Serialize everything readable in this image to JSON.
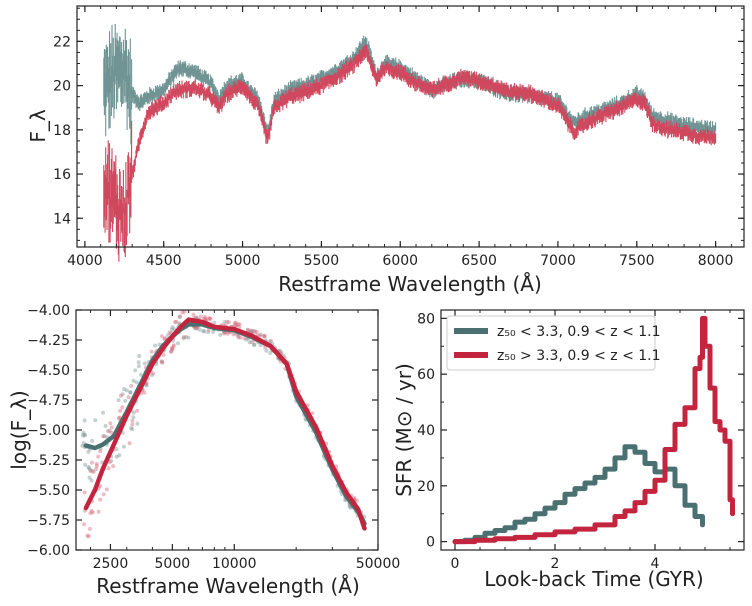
{
  "colors": {
    "teal": "#4a7072",
    "red": "#c4253e",
    "teal_light": "#6f9493",
    "red_light": "#d0485e"
  },
  "chart_data": [
    {
      "type": "line",
      "xlabel": "Restframe Wavelength (Å)",
      "ylabel": "F_λ",
      "xlim": [
        3950,
        8180
      ],
      "ylim": [
        12.7,
        23.6
      ],
      "xticks": [
        4000,
        4500,
        5000,
        5500,
        6000,
        6500,
        7000,
        7500,
        8000
      ],
      "yticks": [
        14,
        16,
        18,
        20,
        22
      ],
      "error_bars": true,
      "series": [
        {
          "color": "teal",
          "x": [
            4120,
            4180,
            4250,
            4300,
            4350,
            4400,
            4500,
            4560,
            4600,
            4700,
            4800,
            4850,
            4900,
            5000,
            5050,
            5100,
            5160,
            5200,
            5300,
            5400,
            5500,
            5600,
            5700,
            5780,
            5800,
            5850,
            5900,
            6000,
            6100,
            6200,
            6300,
            6400,
            6500,
            6600,
            6700,
            6800,
            6900,
            7000,
            7050,
            7100,
            7200,
            7300,
            7400,
            7500,
            7550,
            7600,
            7700,
            7800,
            7900,
            8000
          ],
          "y": [
            19.8,
            20.4,
            20.8,
            19.6,
            19.2,
            19.5,
            19.8,
            20.5,
            20.8,
            20.6,
            20.1,
            19.4,
            20.0,
            20.2,
            19.7,
            19.4,
            17.8,
            19.3,
            19.8,
            20.0,
            20.3,
            20.7,
            21.2,
            22.0,
            21.6,
            20.4,
            21.0,
            20.8,
            20.3,
            19.8,
            20.1,
            20.3,
            20.2,
            19.9,
            19.6,
            19.6,
            19.4,
            19.3,
            18.8,
            18.3,
            18.7,
            18.9,
            19.2,
            19.6,
            19.4,
            18.6,
            18.4,
            18.2,
            18.1,
            18.0
          ]
        },
        {
          "color": "red",
          "x": [
            4120,
            4150,
            4200,
            4250,
            4300,
            4350,
            4400,
            4500,
            4560,
            4600,
            4700,
            4800,
            4850,
            4900,
            5000,
            5050,
            5100,
            5160,
            5200,
            5300,
            5400,
            5500,
            5600,
            5700,
            5780,
            5800,
            5850,
            5900,
            6000,
            6100,
            6200,
            6300,
            6400,
            6500,
            6600,
            6700,
            6800,
            6900,
            7000,
            7050,
            7100,
            7200,
            7300,
            7400,
            7500,
            7550,
            7600,
            7700,
            7800,
            7900,
            8000
          ],
          "y": [
            16.0,
            15.2,
            14.6,
            14.2,
            16.0,
            17.6,
            18.8,
            19.2,
            19.7,
            19.8,
            19.9,
            19.5,
            19.0,
            19.6,
            20.0,
            19.5,
            19.0,
            17.5,
            19.0,
            19.5,
            19.7,
            20.0,
            20.4,
            20.9,
            21.6,
            21.2,
            20.3,
            20.8,
            20.6,
            20.1,
            19.8,
            20.1,
            20.4,
            20.2,
            20.0,
            19.7,
            19.7,
            19.4,
            19.1,
            18.5,
            17.9,
            18.4,
            18.7,
            19.0,
            19.4,
            19.2,
            18.3,
            18.0,
            17.9,
            17.7,
            17.7
          ]
        }
      ]
    },
    {
      "type": "line",
      "xlabel": "Restframe Wavelength (Å)",
      "ylabel": "log(F_λ)",
      "xscale": "log",
      "xlim": [
        1700,
        50000
      ],
      "ylim": [
        -6.0,
        -4.0
      ],
      "xticks": [
        2500,
        5000,
        10000,
        50000
      ],
      "yticks": [
        -6.0,
        -5.75,
        -5.5,
        -5.25,
        -5.0,
        -4.75,
        -4.5,
        -4.25,
        -4.0
      ],
      "scatter_points": true,
      "series": [
        {
          "color": "teal",
          "x": [
            1900,
            2100,
            2300,
            2600,
            3000,
            3500,
            4000,
            4500,
            5000,
            5500,
            6000,
            7000,
            8000,
            10000,
            12000,
            15000,
            18000,
            20000,
            25000,
            30000,
            35000,
            40000,
            43000
          ],
          "y": [
            -5.13,
            -5.15,
            -5.12,
            -5.05,
            -4.85,
            -4.62,
            -4.42,
            -4.3,
            -4.22,
            -4.16,
            -4.12,
            -4.12,
            -4.15,
            -4.17,
            -4.22,
            -4.3,
            -4.45,
            -4.72,
            -5.02,
            -5.33,
            -5.55,
            -5.68,
            -5.78
          ]
        },
        {
          "color": "red",
          "x": [
            1900,
            2100,
            2300,
            2600,
            3000,
            3500,
            4000,
            4500,
            5000,
            5500,
            6000,
            7000,
            8000,
            10000,
            12000,
            15000,
            18000,
            20000,
            25000,
            30000,
            35000,
            40000,
            43000
          ],
          "y": [
            -5.65,
            -5.5,
            -5.32,
            -5.12,
            -4.88,
            -4.65,
            -4.45,
            -4.32,
            -4.22,
            -4.14,
            -4.08,
            -4.1,
            -4.14,
            -4.16,
            -4.21,
            -4.3,
            -4.45,
            -4.68,
            -4.98,
            -5.3,
            -5.52,
            -5.66,
            -5.82
          ]
        }
      ]
    },
    {
      "type": "line",
      "xlabel": "Look-back Time (GYR)",
      "ylabel": "SFR (M⊙ / yr)",
      "xlim": [
        -0.28,
        5.78
      ],
      "ylim": [
        -3,
        83
      ],
      "xticks": [
        0,
        2,
        4
      ],
      "yticks": [
        0,
        20,
        40,
        60,
        80
      ],
      "legend": "top-left",
      "series": [
        {
          "name": "z₅₀ < 3.3, 0.9 < z < 1.1",
          "color": "teal",
          "x": [
            0,
            0.2,
            0.4,
            0.6,
            0.8,
            1.0,
            1.2,
            1.4,
            1.6,
            1.8,
            2.0,
            2.2,
            2.4,
            2.6,
            2.8,
            3.0,
            3.2,
            3.4,
            3.6,
            3.8,
            4.0,
            4.2,
            4.4,
            4.6,
            4.8,
            4.95
          ],
          "y": [
            0,
            0.5,
            1.5,
            3,
            4,
            5,
            7,
            8,
            10,
            12,
            14,
            17,
            19,
            21,
            23,
            26,
            30,
            34,
            32,
            28,
            25,
            26,
            20,
            13,
            9,
            6
          ]
        },
        {
          "name": "z₅₀ > 3.3, 0.9 < z < 1.1",
          "color": "red",
          "x": [
            0,
            0.4,
            0.8,
            1.2,
            1.6,
            2.0,
            2.4,
            2.8,
            3.2,
            3.4,
            3.6,
            3.8,
            4.0,
            4.2,
            4.4,
            4.6,
            4.8,
            4.9,
            4.95,
            5.0,
            5.1,
            5.2,
            5.3,
            5.4,
            5.5,
            5.55
          ],
          "y": [
            0,
            0.5,
            1,
            1.5,
            2.5,
            3.5,
            4.5,
            6,
            9,
            11,
            14,
            18,
            22,
            33,
            42,
            48,
            62,
            66,
            80,
            70,
            55,
            43,
            40,
            36,
            15,
            10
          ]
        }
      ]
    }
  ]
}
